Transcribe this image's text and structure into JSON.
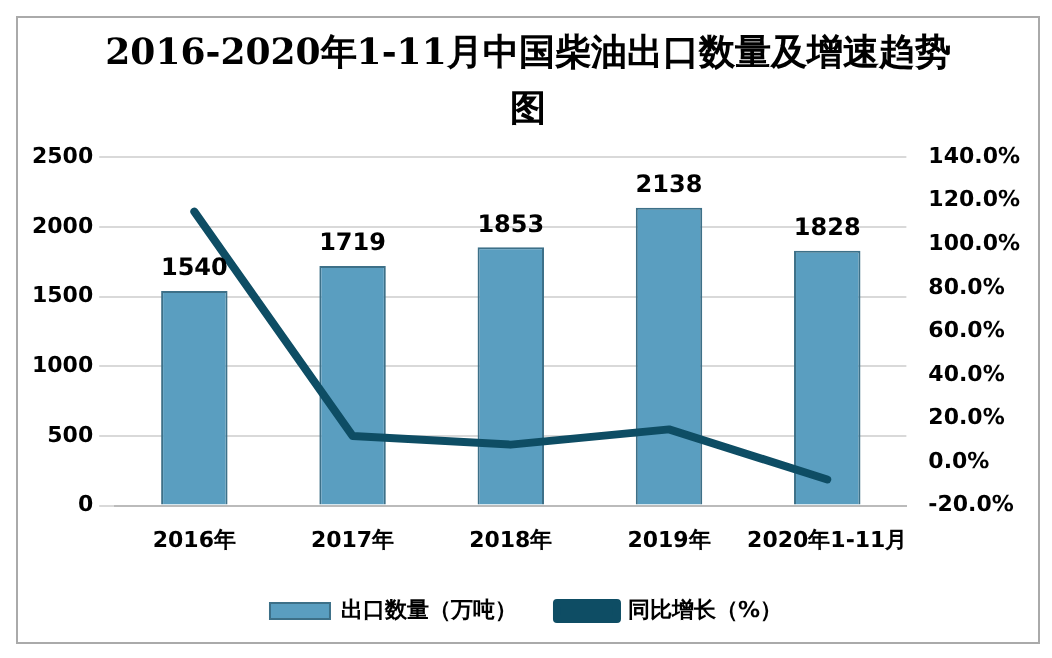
{
  "chart_data": {
    "type": "bar",
    "title": "2016-2020年1-11月中国柴油出口数量及增速趋势图",
    "categories": [
      "2016年",
      "2017年",
      "2018年",
      "2019年",
      "2020年1-11月"
    ],
    "series": [
      {
        "name": "出口数量（万吨）",
        "color": "#5a9ec0",
        "values": [
          1540,
          1719,
          1853,
          2138,
          1828
        ]
      },
      {
        "name": "同比增长（%）",
        "type": "line",
        "axis": "y2",
        "color": "#0e4d64",
        "values": [
          115,
          12,
          8,
          15,
          -8
        ]
      }
    ],
    "ylim": [
      0,
      2500
    ],
    "yticks": [
      0,
      500,
      1000,
      1500,
      2000,
      2500
    ],
    "y2lim": [
      -20,
      140
    ],
    "y2ticks": [
      {
        "value": -20,
        "label": "-20.0%"
      },
      {
        "value": 0,
        "label": "0.0%"
      },
      {
        "value": 20,
        "label": "20.0%"
      },
      {
        "value": 40,
        "label": "40.0%"
      },
      {
        "value": 60,
        "label": "60.0%"
      },
      {
        "value": 80,
        "label": "80.0%"
      },
      {
        "value": 100,
        "label": "100.0%"
      },
      {
        "value": 120,
        "label": "120.0%"
      },
      {
        "value": 140,
        "label": "140.0%"
      }
    ],
    "value_labels": [
      "1540",
      "1719",
      "1853",
      "2138",
      "1828"
    ],
    "grid": "y",
    "legend": "bottom",
    "marker": "none",
    "line_style": "solid"
  }
}
